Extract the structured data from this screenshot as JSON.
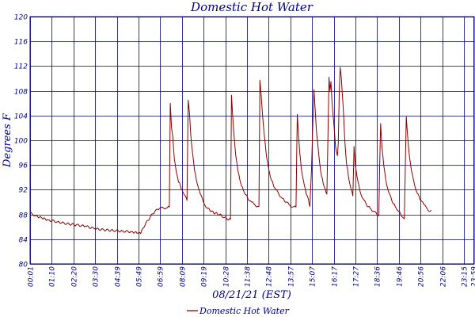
{
  "chart_data": {
    "type": "line",
    "title": "Domestic Hot Water",
    "xlabel": "08/21/21 (EST)",
    "ylabel": "Degrees F",
    "ylim": [
      80,
      120
    ],
    "y_ticks": [
      80,
      84,
      88,
      92,
      96,
      100,
      104,
      108,
      112,
      116,
      120
    ],
    "x_ticks": [
      "00:01",
      "01:10",
      "02:20",
      "03:30",
      "04:39",
      "05:49",
      "06:59",
      "08:09",
      "09:19",
      "10:28",
      "11:38",
      "12:48",
      "13:57",
      "15:07",
      "16:17",
      "17:27",
      "18:36",
      "19:46",
      "20:56",
      "22:06",
      "23:15",
      "23:59"
    ],
    "x_unit": "minutes since midnight",
    "xlim": [
      1,
      1439
    ],
    "grid": true,
    "legend": "bottom",
    "colors": {
      "series": "#8b0000",
      "axis": "#000080",
      "grid": "#000080"
    },
    "series": [
      {
        "name": "Domestic Hot Water",
        "points": [
          [
            1,
            88.3
          ],
          [
            20,
            87.8
          ],
          [
            40,
            87.4
          ],
          [
            60,
            87.1
          ],
          [
            90,
            86.8
          ],
          [
            120,
            86.5
          ],
          [
            150,
            86.3
          ],
          [
            180,
            86.1
          ],
          [
            210,
            85.7
          ],
          [
            240,
            85.5
          ],
          [
            270,
            85.4
          ],
          [
            300,
            85.3
          ],
          [
            330,
            85.2
          ],
          [
            350,
            85.0
          ],
          [
            359,
            84.9
          ],
          [
            363,
            85.5
          ],
          [
            375,
            86.5
          ],
          [
            390,
            87.6
          ],
          [
            405,
            88.5
          ],
          [
            420,
            89.0
          ],
          [
            445,
            89.1
          ],
          [
            452,
            89.2
          ],
          [
            455,
            106.0
          ],
          [
            459,
            102.0
          ],
          [
            463,
            100.6
          ],
          [
            468,
            97.0
          ],
          [
            474,
            95.0
          ],
          [
            480,
            93.6
          ],
          [
            488,
            92.6
          ],
          [
            496,
            91.6
          ],
          [
            504,
            91.0
          ],
          [
            509,
            90.3
          ],
          [
            513,
            106.5
          ],
          [
            517,
            104.5
          ],
          [
            521,
            101.0
          ],
          [
            527,
            98.0
          ],
          [
            534,
            95.0
          ],
          [
            542,
            93.0
          ],
          [
            552,
            91.3
          ],
          [
            562,
            90.0
          ],
          [
            575,
            89.0
          ],
          [
            595,
            88.3
          ],
          [
            615,
            88.0
          ],
          [
            630,
            87.5
          ],
          [
            645,
            87.2
          ],
          [
            650,
            87.2
          ],
          [
            653,
            107.3
          ],
          [
            657,
            104.0
          ],
          [
            661,
            101.0
          ],
          [
            667,
            97.5
          ],
          [
            674,
            95.0
          ],
          [
            683,
            93.0
          ],
          [
            694,
            91.6
          ],
          [
            706,
            90.6
          ],
          [
            718,
            90.0
          ],
          [
            728,
            89.6
          ],
          [
            738,
            89.3
          ],
          [
            742,
            89.3
          ],
          [
            745,
            109.7
          ],
          [
            749,
            107.5
          ],
          [
            753,
            104.5
          ],
          [
            759,
            101.0
          ],
          [
            765,
            98.0
          ],
          [
            773,
            95.5
          ],
          [
            782,
            93.6
          ],
          [
            793,
            92.3
          ],
          [
            806,
            91.3
          ],
          [
            818,
            90.6
          ],
          [
            830,
            90.0
          ],
          [
            842,
            89.5
          ],
          [
            852,
            89.2
          ],
          [
            862,
            89.2
          ],
          [
            866,
            104.2
          ],
          [
            870,
            101.0
          ],
          [
            874,
            98.0
          ],
          [
            879,
            95.5
          ],
          [
            886,
            93.5
          ],
          [
            895,
            91.3
          ],
          [
            902,
            90.5
          ],
          [
            907,
            89.3
          ],
          [
            912,
            95.0
          ],
          [
            916,
            102.0
          ],
          [
            920,
            108.2
          ],
          [
            924,
            105.0
          ],
          [
            929,
            101.0
          ],
          [
            935,
            98.0
          ],
          [
            942,
            95.0
          ],
          [
            950,
            93.0
          ],
          [
            957,
            92.0
          ],
          [
            962,
            91.3
          ],
          [
            965,
            99.5
          ],
          [
            969,
            110.2
          ],
          [
            972,
            108.0
          ],
          [
            975,
            109.5
          ],
          [
            979,
            106.0
          ],
          [
            984,
            103.0
          ],
          [
            990,
            99.0
          ],
          [
            996,
            97.5
          ],
          [
            999,
            99.5
          ],
          [
            1002,
            107.5
          ],
          [
            1005,
            111.8
          ],
          [
            1009,
            110.0
          ],
          [
            1014,
            106.0
          ],
          [
            1020,
            100.0
          ],
          [
            1026,
            96.0
          ],
          [
            1031,
            94.5
          ],
          [
            1036,
            93.0
          ],
          [
            1041,
            92.0
          ],
          [
            1046,
            91.0
          ],
          [
            1048,
            95.0
          ],
          [
            1050,
            99.0
          ],
          [
            1054,
            96.0
          ],
          [
            1060,
            94.0
          ],
          [
            1068,
            92.0
          ],
          [
            1078,
            90.6
          ],
          [
            1090,
            89.6
          ],
          [
            1102,
            89.0
          ],
          [
            1114,
            88.5
          ],
          [
            1124,
            88.0
          ],
          [
            1130,
            87.8
          ],
          [
            1133,
            96.0
          ],
          [
            1136,
            102.7
          ],
          [
            1140,
            99.0
          ],
          [
            1146,
            96.0
          ],
          [
            1153,
            93.5
          ],
          [
            1162,
            91.6
          ],
          [
            1172,
            90.3
          ],
          [
            1183,
            89.3
          ],
          [
            1193,
            88.6
          ],
          [
            1201,
            88.0
          ],
          [
            1208,
            87.5
          ],
          [
            1213,
            87.3
          ],
          [
            1216,
            96.0
          ],
          [
            1219,
            103.8
          ],
          [
            1223,
            101.0
          ],
          [
            1229,
            97.5
          ],
          [
            1236,
            95.0
          ],
          [
            1245,
            93.0
          ],
          [
            1255,
            91.4
          ],
          [
            1266,
            90.3
          ],
          [
            1276,
            89.6
          ],
          [
            1286,
            89.0
          ],
          [
            1296,
            88.5
          ],
          [
            1300,
            88.7
          ]
        ]
      }
    ]
  }
}
